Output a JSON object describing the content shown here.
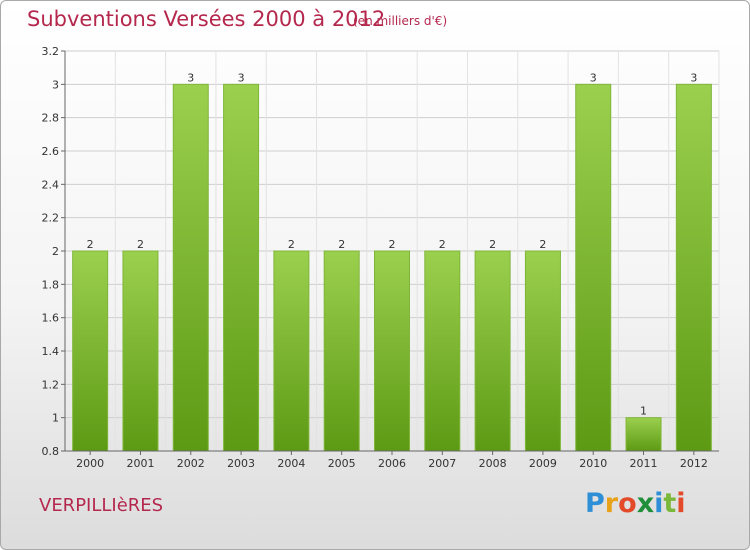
{
  "header": {
    "title": "Subventions Versées 2000 à 2012",
    "unit_note": "(en milliers d'€)"
  },
  "footer": {
    "place": "VERPILLIèRES",
    "brand": "Proxiti"
  },
  "colors": {
    "title": "#b5284e",
    "bar_top": "#9bd04e",
    "bar_bottom": "#5d9a14"
  },
  "chart_data": {
    "type": "bar",
    "categories": [
      "2000",
      "2001",
      "2002",
      "2003",
      "2004",
      "2005",
      "2006",
      "2007",
      "2008",
      "2009",
      "2010",
      "2011",
      "2012"
    ],
    "values": [
      2,
      2,
      3,
      3,
      2,
      2,
      2,
      2,
      2,
      2,
      3,
      1,
      3
    ],
    "value_labels": [
      "2",
      "2",
      "3",
      "3",
      "2",
      "2",
      "2",
      "2",
      "2",
      "2",
      "3",
      "1",
      "3"
    ],
    "ylim": [
      0.8,
      3.2
    ],
    "yticks": [
      0.8,
      1,
      1.2,
      1.4,
      1.6,
      1.8,
      2,
      2.2,
      2.4,
      2.6,
      2.8,
      3,
      3.2
    ],
    "ytick_labels": [
      "0.8",
      "1",
      "1.2",
      "1.4",
      "1.6",
      "1.8",
      "2",
      "2.2",
      "2.4",
      "2.6",
      "2.8",
      "3",
      "3.2"
    ],
    "grid": true,
    "title": "Subventions Versées 2000 à 2012",
    "xlabel": "",
    "ylabel": ""
  }
}
